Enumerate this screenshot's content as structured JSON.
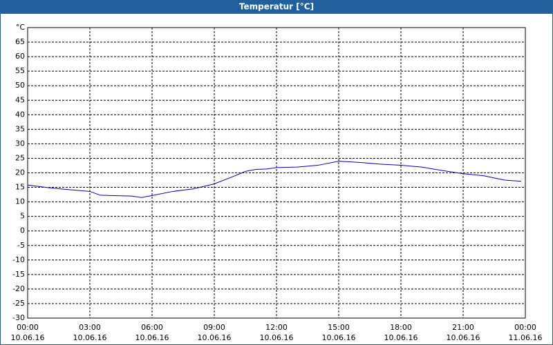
{
  "chart_data": {
    "type": "line",
    "title": "Temperatur [°C]",
    "x": [
      0,
      1,
      2,
      3,
      3.5,
      4,
      5,
      5.5,
      6,
      7,
      8,
      9,
      10,
      10.5,
      11,
      11.5,
      12,
      13,
      14,
      15,
      16,
      17,
      18,
      19,
      20,
      21,
      22,
      23,
      23.8
    ],
    "series": [
      {
        "name": "Temperatur",
        "color": "#0000c0",
        "values": [
          15.8,
          14.9,
          14.2,
          13.6,
          12.3,
          12.2,
          12.0,
          11.5,
          12.2,
          13.6,
          14.5,
          16.2,
          19.0,
          20.5,
          21.2,
          21.3,
          21.8,
          22.0,
          22.6,
          24.0,
          23.6,
          23.0,
          22.6,
          22.0,
          20.8,
          19.7,
          19.0,
          17.5,
          17.1
        ]
      }
    ],
    "xlim": [
      0,
      24
    ],
    "xticks": [
      {
        "value": 0,
        "label": "00:00"
      },
      {
        "value": 3,
        "label": "03:00"
      },
      {
        "value": 6,
        "label": "06:00"
      },
      {
        "value": 9,
        "label": "09:00"
      },
      {
        "value": 12,
        "label": "12:00"
      },
      {
        "value": 15,
        "label": "15:00"
      },
      {
        "value": 18,
        "label": "18:00"
      },
      {
        "value": 21,
        "label": "21:00"
      },
      {
        "value": 24,
        "label": "00:00"
      }
    ],
    "xtick_dates": [
      "10.06.16",
      "10.06.16",
      "10.06.16",
      "10.06.16",
      "10.06.16",
      "10.06.16",
      "10.06.16",
      "10.06.16",
      "11.06.16"
    ],
    "ylim": [
      -30,
      70
    ],
    "yticks": [
      -30,
      -25,
      -20,
      -15,
      -10,
      -5,
      0,
      5,
      10,
      15,
      20,
      25,
      30,
      35,
      40,
      45,
      50,
      55,
      60,
      65,
      {
        "value": 70,
        "label": "°C"
      }
    ],
    "grid": true
  }
}
